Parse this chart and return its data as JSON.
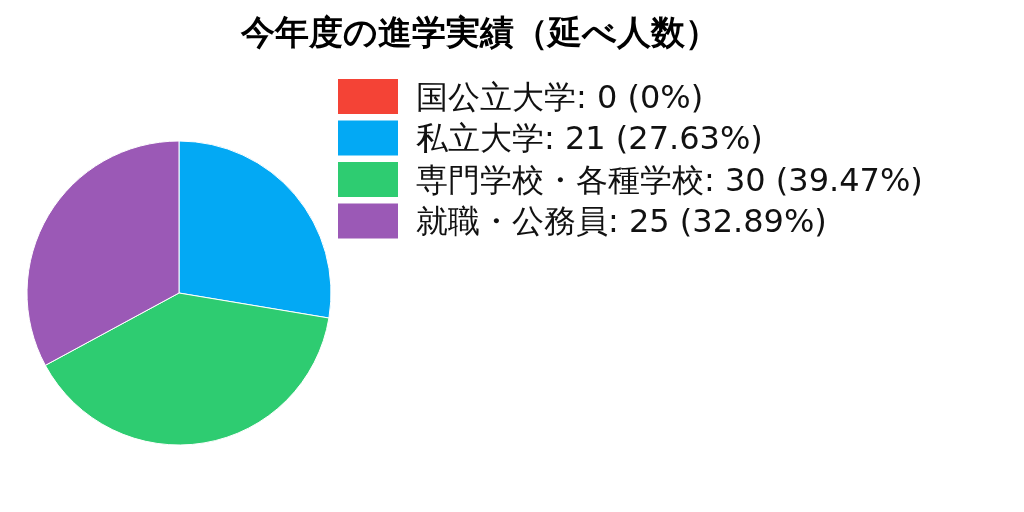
{
  "chart_data": {
    "type": "pie",
    "title": "今年度の進学実績（延べ人数）",
    "categories": [
      "国公立大学",
      "私立大学",
      "専門学校・各種学校",
      "就職・公務員"
    ],
    "values": [
      0,
      21,
      30,
      25
    ],
    "value_labels": [
      "0 (0%)",
      "21 (27.63%)",
      "30 (39.47%)",
      "25 (32.89%)"
    ],
    "colors": [
      "#f44336",
      "#03a9f4",
      "#2ecc71",
      "#9b59b6"
    ],
    "legend": "top right"
  }
}
